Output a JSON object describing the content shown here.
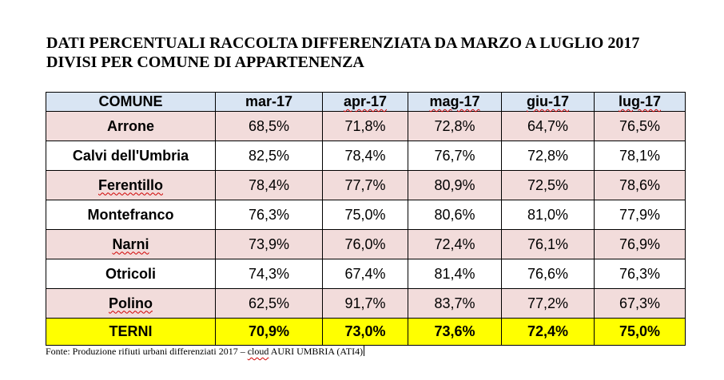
{
  "title": {
    "line1": "DATI PERCENTUALI RACCOLTA DIFFERENZIATA DA MARZO A LUGLIO 2017",
    "line2": "DIVISI PER COMUNE DI APPARTENENZA"
  },
  "table": {
    "headers": [
      "COMUNE",
      "mar-17",
      "apr-17",
      "mag-17",
      "giu-17",
      "lug-17"
    ],
    "rows": [
      {
        "name": "Arrone",
        "values": [
          "68,5%",
          "71,8%",
          "72,8%",
          "64,7%",
          "76,5%"
        ]
      },
      {
        "name": "Calvi dell'Umbria",
        "values": [
          "82,5%",
          "78,4%",
          "76,7%",
          "72,8%",
          "78,1%"
        ]
      },
      {
        "name": "Ferentillo",
        "values": [
          "78,4%",
          "77,7%",
          "80,9%",
          "72,5%",
          "78,6%"
        ]
      },
      {
        "name": "Montefranco",
        "values": [
          "76,3%",
          "75,0%",
          "80,6%",
          "81,0%",
          "77,9%"
        ]
      },
      {
        "name": "Narni",
        "values": [
          "73,9%",
          "76,0%",
          "72,4%",
          "76,1%",
          "76,9%"
        ]
      },
      {
        "name": "Otricoli",
        "values": [
          "74,3%",
          "67,4%",
          "81,4%",
          "76,6%",
          "76,3%"
        ]
      },
      {
        "name": "Polino",
        "values": [
          "62,5%",
          "91,7%",
          "83,7%",
          "77,2%",
          "67,3%"
        ]
      }
    ],
    "total": {
      "name": "TERNI",
      "values": [
        "70,9%",
        "73,0%",
        "73,6%",
        "72,4%",
        "75,0%"
      ]
    }
  },
  "source": {
    "before": "Fonte: Produzione rifiuti urbani differenziati 2017 – ",
    "cloud": "cloud",
    "after": " AURI UMBRIA (ATI4)"
  },
  "colors": {
    "header_bg": "#d9e5f3",
    "row_alt_bg": "#f2dcdb",
    "total_bg": "#ffff00",
    "spellcheck_underline": "#d00000"
  }
}
